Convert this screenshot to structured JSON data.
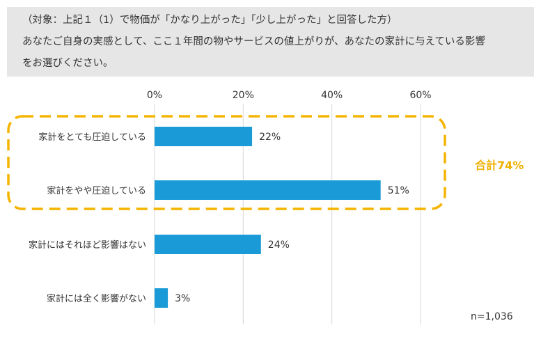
{
  "question": {
    "line1": "（対象：上記１（1）で物価が「かなり上がった」「少し上がった」と回答した方）",
    "line2": "あなたご自身の実感として、ここ１年間の物やサービスの値上がりが、あなたの家計に与えている影響",
    "line3": "をお選びください。"
  },
  "highlight": {
    "label": "合計74%",
    "color": "#f5b400"
  },
  "sample": {
    "label": "n=1,036"
  },
  "colors": {
    "bar": "#1a9bd7",
    "grid": "#d9d9d9",
    "text": "#333333"
  },
  "chart_data": {
    "type": "bar",
    "orientation": "horizontal",
    "title": "",
    "categories": [
      "家計をとても圧迫している",
      "家計をやや圧迫している",
      "家計にはそれほど影響はない",
      "家計には全く影響がない"
    ],
    "values": [
      22,
      51,
      24,
      3
    ],
    "value_labels": [
      "22%",
      "51%",
      "24%",
      "3%"
    ],
    "xlim": [
      0,
      60
    ],
    "xticks": [
      0,
      20,
      40,
      60
    ],
    "xtick_labels": [
      "0%",
      "20%",
      "40%",
      "60%"
    ],
    "xaxis_position": "top",
    "grid": true
  }
}
